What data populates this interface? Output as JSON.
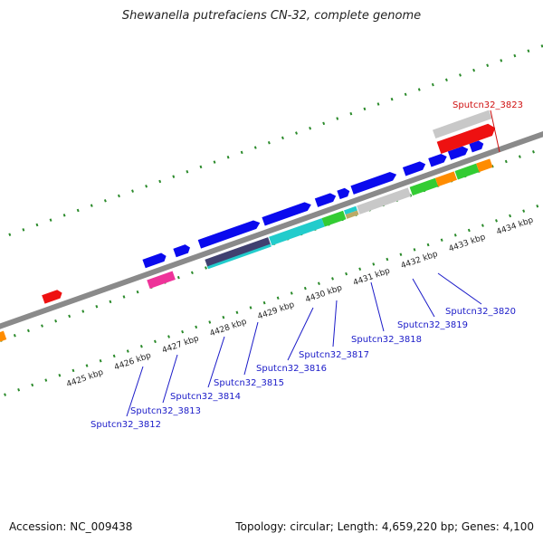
{
  "title": "Shewanella putrefaciens CN-32, complete genome",
  "footer": {
    "accession": "Accession: NC_009438",
    "topology": "Topology: circular; Length: 4,659,220 bp; Genes: 4,100"
  },
  "colors": {
    "backbone": "#8a8a8a",
    "tick": "#2a8a2a",
    "label_blue": "#1a1ac8",
    "label_red": "#d01010",
    "blue": "#0a0aee",
    "cyan": "#22cccc",
    "green": "#33cc33",
    "orange": "#ff8c00",
    "gray": "#c8c8c8",
    "red": "#ee1111",
    "pink": "#ee3399",
    "navy": "#404070"
  },
  "kbp_labels": [
    "4425 kbp",
    "4426 kbp",
    "4427 kbp",
    "4428 kbp",
    "4429 kbp",
    "4430 kbp",
    "4431 kbp",
    "4432 kbp",
    "4433 kbp",
    "4434 kbp"
  ],
  "gene_labels": [
    {
      "name": "Sputcn32_3812",
      "color": "blue"
    },
    {
      "name": "Sputcn32_3813",
      "color": "blue"
    },
    {
      "name": "Sputcn32_3814",
      "color": "blue"
    },
    {
      "name": "Sputcn32_3815",
      "color": "blue"
    },
    {
      "name": "Sputcn32_3816",
      "color": "blue"
    },
    {
      "name": "Sputcn32_3817",
      "color": "blue"
    },
    {
      "name": "Sputcn32_3818",
      "color": "blue"
    },
    {
      "name": "Sputcn32_3819",
      "color": "blue"
    },
    {
      "name": "Sputcn32_3820",
      "color": "blue"
    },
    {
      "name": "Sputcn32_3823",
      "color": "red"
    }
  ]
}
